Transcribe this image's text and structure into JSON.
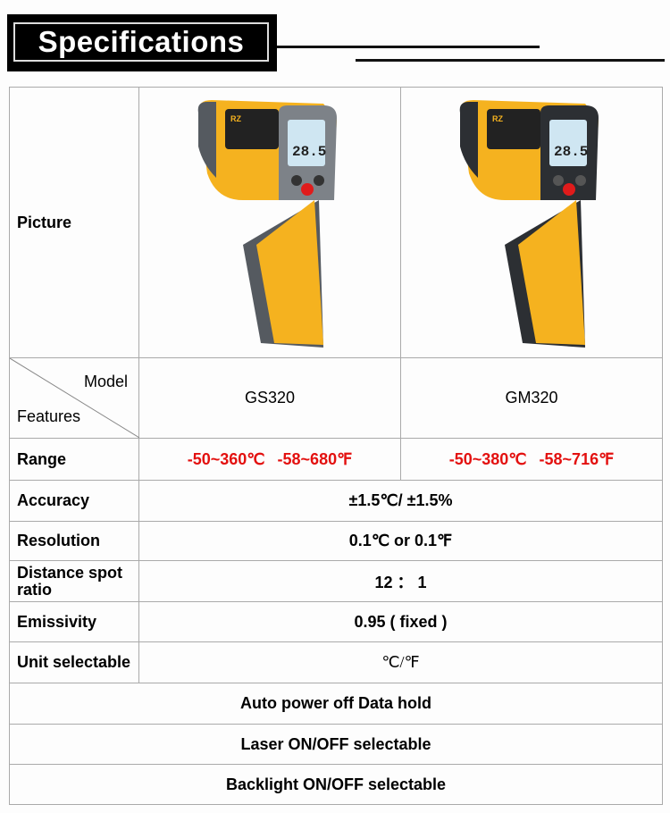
{
  "title": "Specifications",
  "picture_label": "Picture",
  "devices": [
    {
      "model": "GS320",
      "display": "28.5",
      "body_color": "#f5b21f",
      "grip_color": "#555a60",
      "range_c": "-50~360℃",
      "range_f": "-58~680℉"
    },
    {
      "model": "GM320",
      "display": "28.5",
      "body_color": "#f5b21f",
      "grip_color": "#2c2f33",
      "range_c": "-50~380℃",
      "range_f": "-58~716℉"
    }
  ],
  "header": {
    "model_label": "Model",
    "features_label": "Features"
  },
  "rows": [
    {
      "label": "Range"
    },
    {
      "label": "Accuracy",
      "value": "±1.5℃/ ±1.5%"
    },
    {
      "label": "Resolution",
      "value": "0.1℃ or 0.1℉"
    },
    {
      "label": "Distance spot ratio",
      "value": "12 ： 1"
    },
    {
      "label": "Emissivity",
      "value": "0.95 ( fixed )"
    },
    {
      "label": "Unit selectable",
      "value": "℃/℉"
    }
  ],
  "features": [
    "Auto power off Data hold",
    "Laser ON/OFF selectable",
    "Backlight ON/OFF selectable"
  ],
  "colors": {
    "range_text": "#e3100f",
    "border": "#aaaaaa"
  }
}
